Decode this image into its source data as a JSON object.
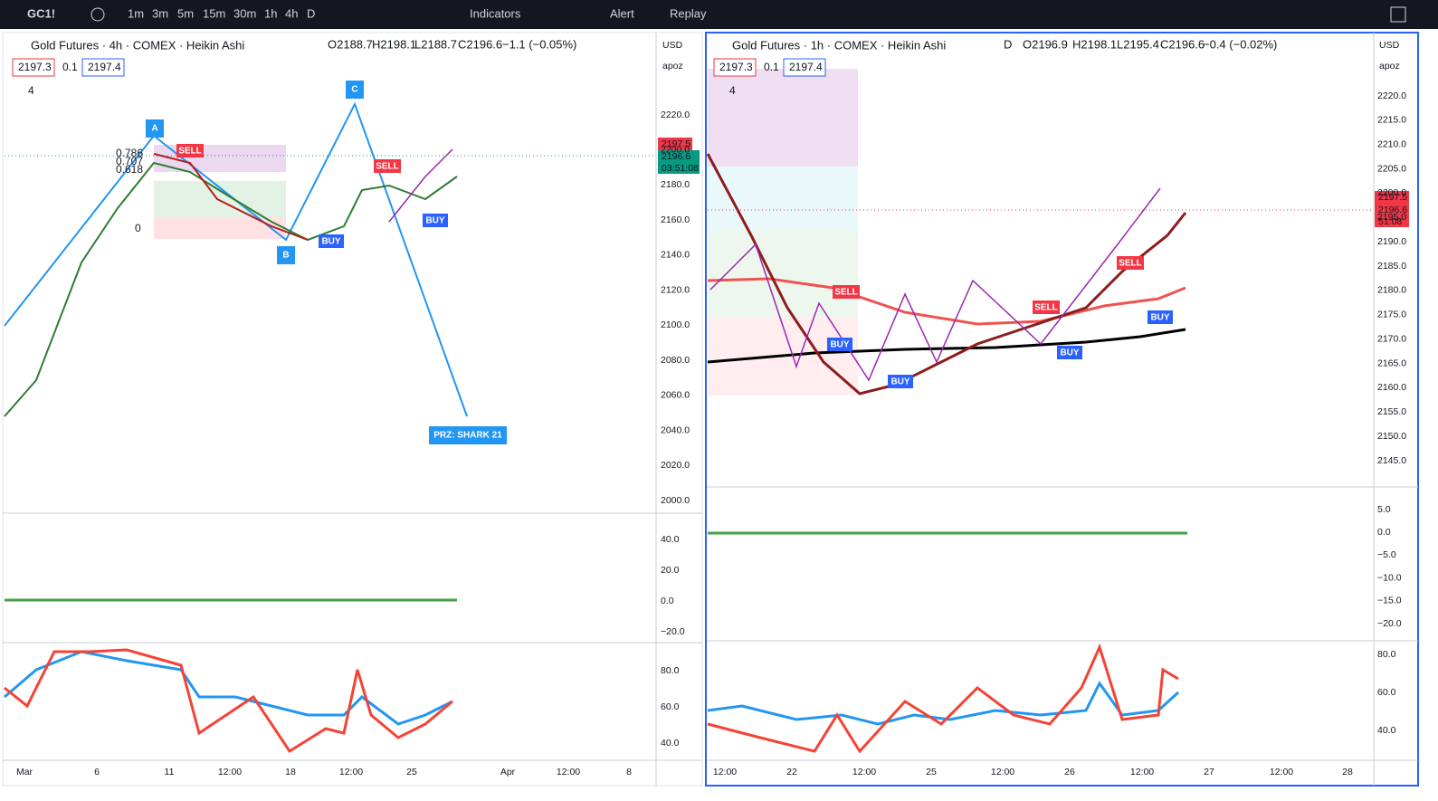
{
  "toolbar": {
    "symbol": "GC1!",
    "intervals": [
      "1m",
      "3m",
      "5m",
      "15m",
      "30m",
      "1h",
      "4h",
      "D"
    ],
    "indicators": "Indicators",
    "alert": "Alert",
    "replay": "Replay"
  },
  "left": {
    "title": "Gold Futures · 4h · COMEX · Heikin Ashi",
    "open": "O2188.7",
    "high": "H2198.1",
    "low": "L2188.7",
    "close": "C2196.6",
    "change": "−1.1 (−0.05%)",
    "bid": "2197.3",
    "spread": "0.1",
    "ask": "2197.4",
    "indicator_count": "4",
    "currency": "USD",
    "scale": "apoz",
    "price_axis": [
      "2220.0",
      "2200.0",
      "2180.0",
      "2160.0",
      "2140.0",
      "2120.0",
      "2100.0",
      "2080.0",
      "2060.0",
      "2040.0",
      "2020.0",
      "2000.0"
    ],
    "last_ask": "2197.5",
    "last_price": "2196.6",
    "countdown": "03:51:08",
    "macd_axis": [
      "40.0",
      "20.0",
      "0.0",
      "−20.0"
    ],
    "rsi_axis": [
      "80.0",
      "60.0",
      "40.0"
    ],
    "time_axis": [
      "Mar",
      "6",
      "11",
      "12:00",
      "18",
      "12:00",
      "25",
      "Apr",
      "12:00",
      "8"
    ],
    "annotations": {
      "points": [
        "A",
        "B",
        "C"
      ],
      "sell": [
        "SELL",
        "SELL"
      ],
      "buy": [
        "BUY",
        "BUY"
      ],
      "prz": "PRZ: SHARK 21",
      "fib": [
        "0.786",
        "0.707",
        "0.618",
        "0"
      ]
    }
  },
  "right": {
    "title": "Gold Futures · 1h · COMEX · Heikin Ashi",
    "badge": "D",
    "open": "O2196.9",
    "high": "H2198.1",
    "low": "L2195.4",
    "close": "C2196.6",
    "change": "−0.4 (−0.02%)",
    "bid": "2197.3",
    "spread": "0.1",
    "ask": "2197.4",
    "indicator_count": "4",
    "currency": "USD",
    "scale": "apoz",
    "price_axis": [
      "2220.0",
      "2215.0",
      "2210.0",
      "2205.0",
      "2200.0",
      "2195.0",
      "2190.0",
      "2185.0",
      "2180.0",
      "2175.0",
      "2170.0",
      "2165.0",
      "2160.0",
      "2155.0",
      "2150.0",
      "2145.0"
    ],
    "last_ask": "2197.5",
    "last_price": "2196.6",
    "countdown": "51:08",
    "macd_axis": [
      "5.0",
      "0.0",
      "−5.0",
      "−10.0",
      "−15.0",
      "−20.0"
    ],
    "rsi_axis": [
      "80.0",
      "60.0",
      "40.0"
    ],
    "time_axis": [
      "12:00",
      "22",
      "12:00",
      "25",
      "12:00",
      "26",
      "12:00",
      "27",
      "12:00",
      "28"
    ],
    "annotations": {
      "sell": [
        "SELL",
        "SELL",
        "SELL"
      ],
      "buy": [
        "BUY",
        "BUY",
        "BUY",
        "BUY"
      ]
    }
  }
}
